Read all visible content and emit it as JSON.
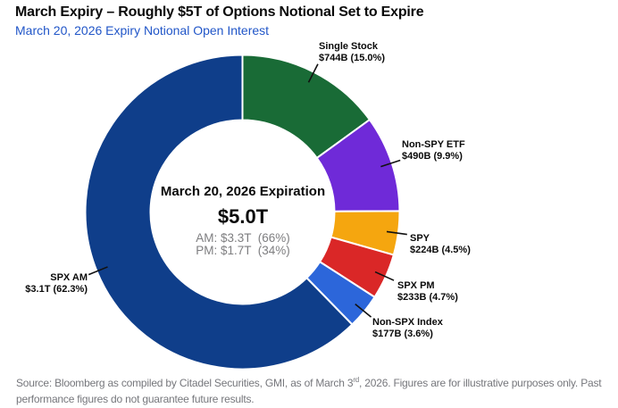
{
  "header": {
    "title": "March Expiry – Roughly $5T of Options Notional Set to Expire",
    "subtitle": "March 20, 2026 Expiry Notional Open Interest",
    "subtitle_color": "#2156c8"
  },
  "chart_data": {
    "type": "pie",
    "variant": "donut",
    "title": "March Expiry – Roughly $5T of Options Notional Set to Expire",
    "subtitle": "March 20, 2026 Expiry Notional Open Interest",
    "start_angle_deg": 0,
    "direction": "clockwise",
    "slices": [
      {
        "label": "Single Stock",
        "value_label": "$744B (15.0%)",
        "value_billions": 744,
        "pct": 15.0,
        "color": "#196b36"
      },
      {
        "label": "Non-SPY ETF",
        "value_label": "$490B (9.9%)",
        "value_billions": 490,
        "pct": 9.9,
        "color": "#6f2ad8"
      },
      {
        "label": "SPY",
        "value_label": "$224B (4.5%)",
        "value_billions": 224,
        "pct": 4.5,
        "color": "#f5a60f"
      },
      {
        "label": "SPX PM",
        "value_label": "$233B (4.7%)",
        "value_billions": 233,
        "pct": 4.7,
        "color": "#da2727"
      },
      {
        "label": "Non-SPX Index",
        "value_label": "$177B (3.6%)",
        "value_billions": 177,
        "pct": 3.6,
        "color": "#2c66da"
      },
      {
        "label": "SPX AM",
        "value_label": "$3.1T (62.3%)",
        "value_billions": 3100,
        "pct": 62.3,
        "color": "#0f3e8a"
      }
    ],
    "center": {
      "title": "March 20, 2026 Expiration",
      "total": "$5.0T",
      "am_line": "AM: $3.3T  (66%)",
      "pm_line": "PM: $1.7T  (34%)"
    }
  },
  "footer": {
    "line1_prefix": "Source: Bloomberg as compiled by Citadel Securities, GMI, as of March 3",
    "line1_sup": "rd",
    "line1_suffix": ", 2026. Figures are for illustrative purposes only. Past",
    "line2": "performance figures do not guarantee future results."
  }
}
